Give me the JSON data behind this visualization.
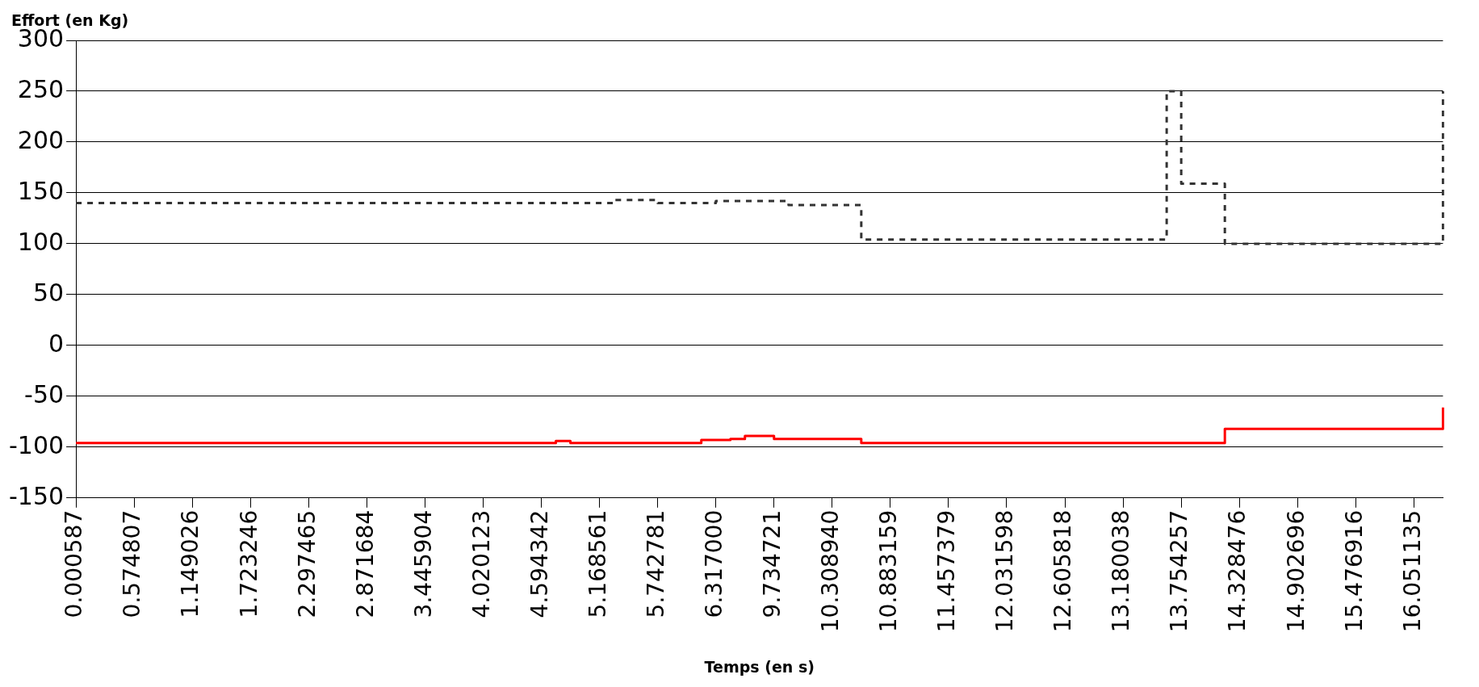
{
  "chart_data": {
    "type": "step",
    "xlabel": "Temps (en s)",
    "ylabel": "Effort (en Kg)",
    "categories": [
      "0.000587",
      null,
      null,
      null,
      "0.574807",
      null,
      null,
      null,
      "1.149026",
      null,
      null,
      null,
      "1.723246",
      null,
      null,
      null,
      "2.297465",
      null,
      null,
      null,
      "2.871684",
      null,
      null,
      null,
      "3.445904",
      null,
      null,
      null,
      "4.020123",
      null,
      null,
      null,
      "4.594342",
      null,
      null,
      null,
      "5.168561",
      null,
      null,
      null,
      "5.742781",
      null,
      null,
      null,
      "6.317000",
      null,
      null,
      null,
      "9.734721",
      null,
      null,
      null,
      "10.308940",
      null,
      null,
      null,
      "10.883159",
      null,
      null,
      null,
      "11.457379",
      null,
      null,
      null,
      "12.031598",
      null,
      null,
      null,
      "12.605818",
      null,
      null,
      null,
      "13.180038",
      null,
      null,
      null,
      "13.754257",
      null,
      null,
      null,
      "14.328476",
      null,
      null,
      null,
      "14.902696",
      null,
      null,
      null,
      "15.476916",
      null,
      null,
      null,
      "16.051135",
      null,
      null
    ],
    "series": [
      {
        "color": "#333333",
        "line_style": "dashed",
        "values": [
          140,
          140,
          140,
          140,
          140,
          140,
          140,
          140,
          140,
          140,
          140,
          140,
          140,
          140,
          140,
          140,
          140,
          140,
          140,
          140,
          140,
          140,
          140,
          140,
          140,
          140,
          140,
          140,
          140,
          140,
          140,
          140,
          140,
          140,
          140,
          140,
          140,
          143,
          143,
          143,
          140,
          140,
          140,
          140,
          142,
          142,
          142,
          142,
          142,
          138,
          138,
          138,
          138,
          138,
          104,
          104,
          104,
          104,
          104,
          104,
          104,
          104,
          104,
          104,
          104,
          104,
          104,
          104,
          104,
          104,
          104,
          104,
          104,
          104,
          104,
          250,
          159,
          159,
          159,
          100,
          100,
          100,
          100,
          100,
          100,
          100,
          100,
          100,
          100,
          100,
          100,
          100,
          100,
          100,
          250
        ]
      },
      {
        "color": "#ff0000",
        "line_style": "solid",
        "values": [
          -96,
          -96,
          -96,
          -96,
          -96,
          -96,
          -96,
          -96,
          -96,
          -96,
          -96,
          -96,
          -96,
          -96,
          -96,
          -96,
          -96,
          -96,
          -96,
          -96,
          -96,
          -96,
          -96,
          -96,
          -96,
          -96,
          -96,
          -96,
          -96,
          -96,
          -96,
          -96,
          -96,
          -94,
          -96,
          -96,
          -96,
          -96,
          -96,
          -96,
          -96,
          -96,
          -96,
          -93,
          -93,
          -92,
          -89,
          -89,
          -92,
          -92,
          -92,
          -92,
          -92,
          -92,
          -96,
          -96,
          -96,
          -96,
          -96,
          -96,
          -96,
          -96,
          -96,
          -96,
          -96,
          -96,
          -96,
          -96,
          -96,
          -96,
          -96,
          -96,
          -96,
          -96,
          -96,
          -96,
          -96,
          -96,
          -96,
          -82,
          -82,
          -82,
          -82,
          -82,
          -82,
          -82,
          -82,
          -82,
          -82,
          -82,
          -82,
          -82,
          -82,
          -82,
          -61
        ]
      }
    ],
    "ylim": [
      -150,
      300
    ],
    "yticks": [
      -150,
      -100,
      -50,
      0,
      50,
      100,
      150,
      200,
      250,
      300
    ],
    "grid": "y",
    "legend": false
  }
}
